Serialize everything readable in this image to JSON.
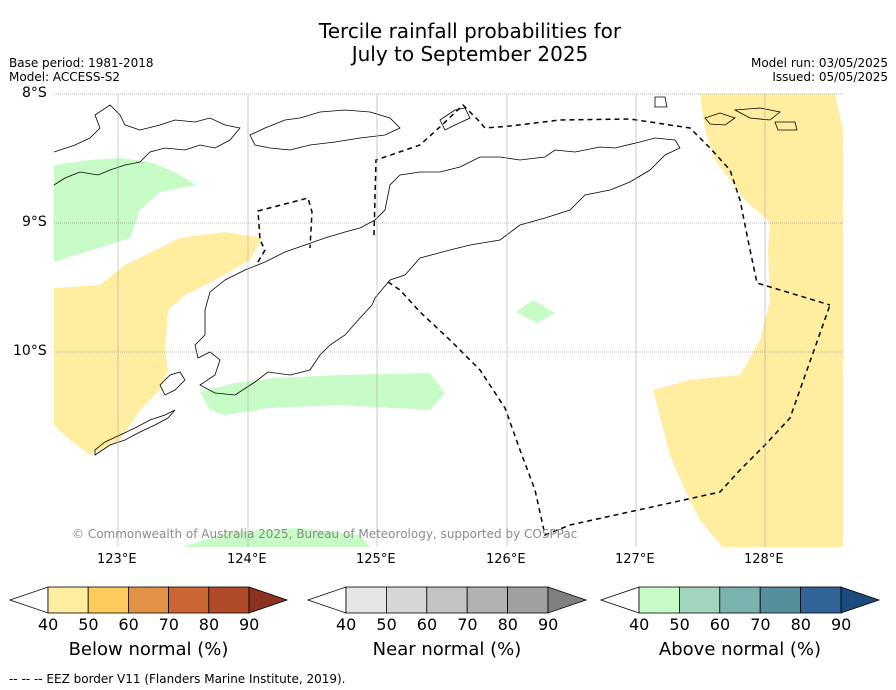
{
  "title_line1": "Tercile rainfall probabilities for",
  "title_line2": "July to September 2025",
  "base_period": "Base period: 1981-2018",
  "model": "Model: ACCESS-S2",
  "model_run": "Model run: 03/05/2025",
  "issued": "Issued: 05/05/2025",
  "copyright": "© Commonwealth of Australia 2025, Bureau of Meteorology, supported by COSPPac",
  "footnote": "--  --  -- EEZ border V11 (Flanders Marine Institute, 2019).",
  "map": {
    "lat_labels": [
      "8°S",
      "9°S",
      "10°S"
    ],
    "lon_labels": [
      "123°E",
      "124°E",
      "125°E",
      "126°E",
      "127°E",
      "128°E"
    ],
    "lon_range": [
      122.5,
      128.6
    ],
    "lat_range": [
      -11.5,
      -8.0
    ]
  },
  "colorbars": [
    {
      "title": "Below normal (%)",
      "ticks": [
        "40",
        "50",
        "60",
        "70",
        "80",
        "90"
      ],
      "colors": [
        "#ffffff",
        "#ffeda0",
        "#fecc5c",
        "#e29244",
        "#cc6633",
        "#b04a28",
        "#8c3220"
      ]
    },
    {
      "title": "Near normal (%)",
      "ticks": [
        "40",
        "50",
        "60",
        "70",
        "80",
        "90"
      ],
      "colors": [
        "#ffffff",
        "#e6e6e6",
        "#d6d6d6",
        "#c4c4c4",
        "#b2b2b2",
        "#a0a0a0",
        "#808080"
      ]
    },
    {
      "title": "Above normal (%)",
      "ticks": [
        "40",
        "50",
        "60",
        "70",
        "80",
        "90"
      ],
      "colors": [
        "#ffffff",
        "#c7fcc7",
        "#a1d5bd",
        "#7ab3ad",
        "#568e9c",
        "#32649a",
        "#1b4a7e"
      ]
    }
  ],
  "legend_colors": {
    "below_normal_fill": "#ffeda0",
    "above_normal_fill": "#c7fcc7"
  }
}
